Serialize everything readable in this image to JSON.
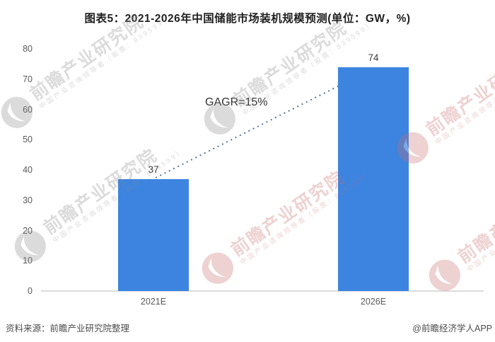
{
  "title": "图表5：2021-2026年中国储能市场装机规模预测(单位：GW，%)",
  "chart_data": {
    "type": "bar",
    "title": "图表5：2021-2026年中国储能市场装机规模预测(单位：GW，%)",
    "unit": "GW",
    "categories": [
      "2021E",
      "2026E"
    ],
    "values": [
      37,
      74
    ],
    "value_labels": [
      "37",
      "74"
    ],
    "annotation": "GAGR=15%",
    "ylim": [
      0,
      80
    ],
    "yticks": [
      0,
      10,
      20,
      30,
      40,
      50,
      60,
      70,
      80
    ],
    "grid": false,
    "legend": "none",
    "bar_color": "#3d84e0",
    "trend_line_color": "#54779e",
    "trend_line_style": "dotted"
  },
  "footer": {
    "source": "资料来源：前瞻产业研究院整理",
    "credit": "@前瞻经济学人APP"
  },
  "watermark": {
    "main_text": "前瞻产业研究院",
    "sub_text": "中国产业咨询领导者（股票：839599）",
    "gray_color": "#8a8a8a",
    "red_color": "#c96a6a"
  }
}
